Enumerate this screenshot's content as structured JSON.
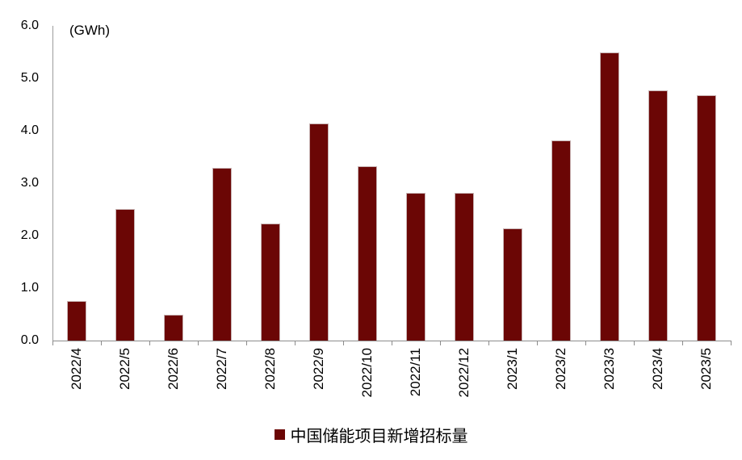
{
  "chart_data": {
    "type": "bar",
    "title": "",
    "unit_label": "(GWh)",
    "categories": [
      "2022/4",
      "2022/5",
      "2022/6",
      "2022/7",
      "2022/8",
      "2022/9",
      "2022/10",
      "2022/11",
      "2022/12",
      "2023/1",
      "2023/2",
      "2023/3",
      "2023/4",
      "2023/5"
    ],
    "values": [
      0.76,
      2.51,
      0.5,
      3.29,
      2.23,
      4.14,
      3.32,
      2.82,
      2.82,
      2.14,
      3.81,
      5.49,
      4.77,
      4.68
    ],
    "series_name": "中国储能项目新增招标量",
    "xlabel": "",
    "ylabel": "(GWh)",
    "ylim": [
      0,
      6
    ],
    "ytick_step": 1,
    "ytick_labels": [
      "0.0",
      "1.0",
      "2.0",
      "3.0",
      "4.0",
      "5.0",
      "6.0"
    ],
    "grid": false,
    "legend_position": "bottom",
    "bar_color": "#6b0605",
    "axis_color": "#8c8c8c"
  }
}
